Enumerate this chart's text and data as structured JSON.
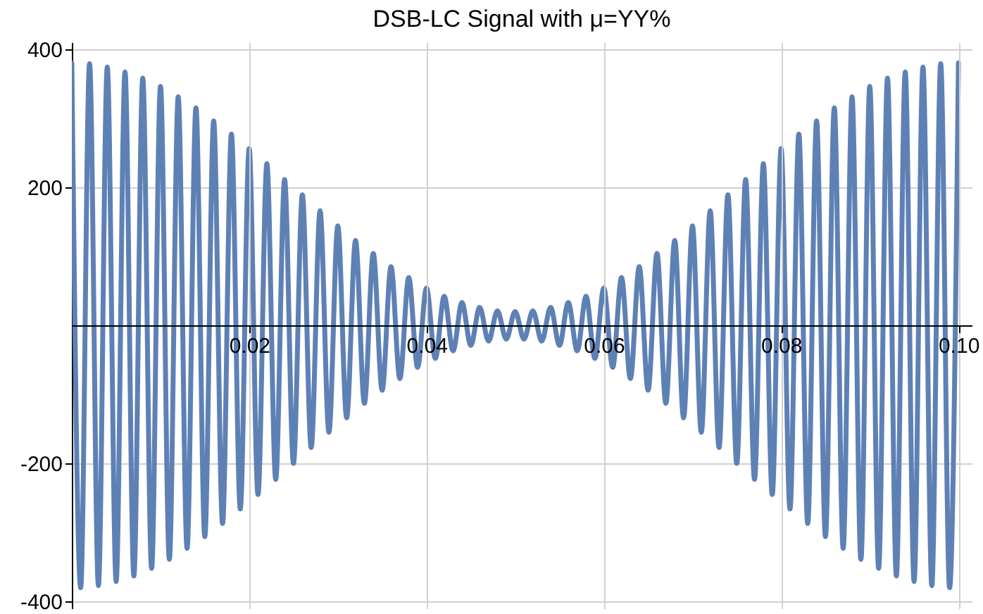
{
  "chart_data": {
    "type": "line",
    "title": "DSB-LC Signal with μ=YY%",
    "x": [
      0,
      0.001,
      0.002,
      0.003,
      0.004,
      0.005,
      0.006,
      0.007,
      0.008,
      0.009,
      0.01,
      0.011,
      0.012,
      0.013,
      0.014,
      0.015,
      0.016,
      0.017,
      0.018,
      0.019,
      0.02,
      0.021,
      0.022,
      0.023,
      0.024,
      0.025,
      0.026,
      0.027,
      0.028,
      0.029,
      0.03,
      0.031,
      0.032,
      0.033,
      0.034,
      0.035,
      0.036,
      0.037,
      0.038,
      0.039,
      0.04,
      0.041,
      0.042,
      0.043,
      0.044,
      0.045,
      0.046,
      0.047,
      0.048,
      0.049,
      0.05,
      0.051,
      0.052,
      0.053,
      0.054,
      0.055,
      0.056,
      0.057,
      0.058,
      0.059,
      0.06,
      0.061,
      0.062,
      0.063,
      0.064,
      0.065,
      0.066,
      0.067,
      0.068,
      0.069,
      0.07,
      0.071,
      0.072,
      0.073,
      0.074,
      0.075,
      0.076,
      0.077,
      0.078,
      0.079,
      0.08,
      0.081,
      0.082,
      0.083,
      0.084,
      0.085,
      0.086,
      0.087,
      0.088,
      0.089,
      0.09,
      0.091,
      0.092,
      0.093,
      0.094,
      0.095,
      0.096,
      0.097,
      0.098,
      0.099,
      0.1
    ],
    "series": [
      {
        "color": "#5e81b5",
        "values": [
          380,
          -380,
          379,
          -377,
          374,
          -371,
          367,
          -363,
          358,
          -352,
          346,
          -339,
          331,
          -323,
          315,
          -306,
          296,
          -287,
          277,
          -266,
          256,
          -245,
          234,
          -223,
          211,
          -200,
          189,
          -177,
          166,
          -155,
          144,
          -134,
          123,
          -113,
          104,
          -94,
          85,
          -77,
          69,
          -61,
          54,
          -48,
          42,
          -37,
          33,
          -29,
          26,
          -23,
          21,
          -20,
          20,
          -20,
          21,
          -23,
          26,
          -29,
          33,
          -37,
          42,
          -48,
          54,
          -61,
          69,
          -77,
          85,
          -94,
          104,
          -113,
          123,
          -134,
          144,
          -155,
          166,
          -177,
          189,
          -200,
          211,
          -223,
          234,
          -245,
          256,
          -266,
          277,
          -287,
          296,
          -306,
          315,
          -323,
          331,
          -339,
          346,
          -352,
          358,
          -363,
          367,
          -371,
          374,
          -377,
          379,
          -380,
          380
        ]
      }
    ],
    "xlim": [
      0,
      0.1015
    ],
    "ylim": [
      -410,
      410
    ],
    "xticks": [
      0.02,
      0.04,
      0.06,
      0.08,
      {
        "value": 0.1,
        "label": "0.10"
      }
    ],
    "yticks": [
      -400,
      -200,
      200,
      400
    ],
    "grid": true
  }
}
